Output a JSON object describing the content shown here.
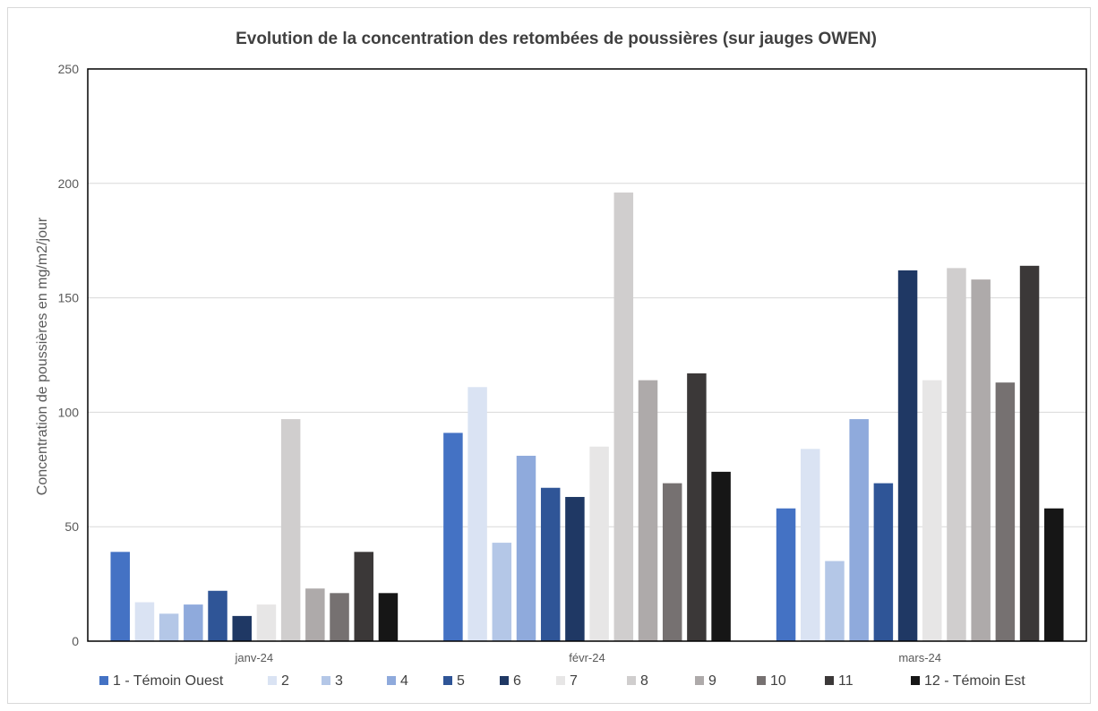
{
  "chart_data": {
    "type": "bar",
    "title": "Evolution de la concentration des retombées de poussières (sur jauges OWEN)",
    "xlabel": "",
    "ylabel": "Concentration de poussières en mg/m2/jour",
    "ylim": [
      0,
      250
    ],
    "yticks": [
      0,
      50,
      100,
      150,
      200,
      250
    ],
    "grid": true,
    "legend_position": "bottom",
    "categories": [
      "janv-24",
      "févr-24",
      "mars-24"
    ],
    "series": [
      {
        "name": "1 - Témoin Ouest",
        "color": "#4472c4",
        "values": [
          39,
          91,
          58
        ]
      },
      {
        "name": "2",
        "color": "#dae3f3",
        "values": [
          17,
          111,
          84
        ]
      },
      {
        "name": "3",
        "color": "#b4c7e7",
        "values": [
          12,
          43,
          35
        ]
      },
      {
        "name": "4",
        "color": "#8faadc",
        "values": [
          16,
          81,
          97
        ]
      },
      {
        "name": "5",
        "color": "#2f5597",
        "values": [
          22,
          67,
          69
        ]
      },
      {
        "name": "6",
        "color": "#1f3864",
        "values": [
          11,
          63,
          162
        ]
      },
      {
        "name": "7",
        "color": "#e7e6e6",
        "values": [
          16,
          85,
          114
        ]
      },
      {
        "name": "8",
        "color": "#d0cece",
        "values": [
          97,
          196,
          163
        ]
      },
      {
        "name": "9",
        "color": "#aeaaaa",
        "values": [
          23,
          114,
          158
        ]
      },
      {
        "name": "10",
        "color": "#767171",
        "values": [
          21,
          69,
          113
        ]
      },
      {
        "name": "11",
        "color": "#3b3838",
        "values": [
          39,
          117,
          164
        ]
      },
      {
        "name": "12 - Témoin Est",
        "color": "#161616",
        "values": [
          21,
          74,
          58
        ]
      }
    ]
  }
}
